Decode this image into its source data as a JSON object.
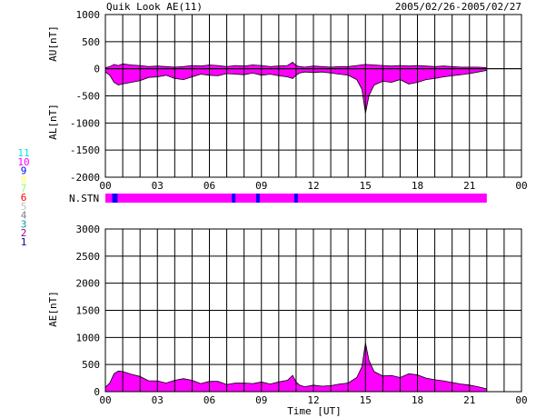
{
  "header": {
    "title": "Quik Look AE(11)",
    "date_range": "2005/02/26-2005/02/27"
  },
  "station_legend": [
    {
      "num": "11",
      "color": "#00e5e5"
    },
    {
      "num": "10",
      "color": "#ff00ff"
    },
    {
      "num": "9",
      "color": "#0000ff"
    },
    {
      "num": "8",
      "color": "#ffff66"
    },
    {
      "num": "7",
      "color": "#80ff80"
    },
    {
      "num": "6",
      "color": "#ff0000"
    },
    {
      "num": "5",
      "color": "#c0c0c0"
    },
    {
      "num": "4",
      "color": "#808080"
    },
    {
      "num": "3",
      "color": "#00a0a0"
    },
    {
      "num": "2",
      "color": "#a00080"
    },
    {
      "num": "1",
      "color": "#0000a0"
    }
  ],
  "chart_data": [
    {
      "type": "area",
      "panel": "AU/AL",
      "xlabel": "",
      "ylabel_top": "AU[nT]",
      "ylabel_bottom": "AL[nT]",
      "ylim": [
        -2000,
        1000
      ],
      "yticks": [
        "1000",
        "500",
        "0",
        "-500",
        "-1000",
        "-1500",
        "-2000"
      ],
      "xlim": [
        0,
        24
      ],
      "xticks": [
        "00",
        "03",
        "06",
        "09",
        "12",
        "15",
        "18",
        "21",
        "00"
      ],
      "fill_color": "#ff00ff",
      "series": [
        {
          "name": "AU",
          "x": [
            0,
            0.25,
            0.5,
            0.75,
            1,
            1.5,
            2,
            2.5,
            3,
            3.5,
            4,
            4.5,
            5,
            5.5,
            6,
            6.5,
            7,
            7.5,
            8,
            8.5,
            9,
            9.5,
            10,
            10.5,
            10.8,
            11,
            11.2,
            11.5,
            12,
            12.5,
            13,
            13.5,
            14,
            14.5,
            15,
            15.5,
            16,
            16.5,
            17,
            17.5,
            18,
            18.5,
            19,
            19.5,
            20,
            20.5,
            21,
            21.5,
            22
          ],
          "values": [
            20,
            40,
            80,
            60,
            90,
            70,
            60,
            40,
            50,
            40,
            30,
            40,
            60,
            50,
            70,
            60,
            40,
            60,
            50,
            70,
            60,
            40,
            50,
            60,
            120,
            60,
            40,
            30,
            50,
            40,
            30,
            40,
            40,
            60,
            80,
            70,
            60,
            50,
            60,
            50,
            60,
            50,
            40,
            50,
            40,
            30,
            30,
            30,
            20
          ]
        },
        {
          "name": "AL",
          "x": [
            0,
            0.25,
            0.5,
            0.75,
            1,
            1.5,
            2,
            2.5,
            3,
            3.5,
            4,
            4.5,
            5,
            5.5,
            6,
            6.5,
            7,
            7.5,
            8,
            8.5,
            9,
            9.5,
            10,
            10.5,
            10.8,
            11,
            11.2,
            11.5,
            12,
            12.5,
            13,
            13.5,
            14,
            14.5,
            14.8,
            15,
            15.2,
            15.5,
            16,
            16.5,
            17,
            17.5,
            18,
            18.5,
            19,
            19.5,
            20,
            20.5,
            21,
            21.5,
            22
          ],
          "values": [
            -60,
            -120,
            -250,
            -300,
            -280,
            -250,
            -220,
            -160,
            -150,
            -120,
            -180,
            -200,
            -150,
            -100,
            -120,
            -130,
            -90,
            -100,
            -110,
            -80,
            -120,
            -100,
            -130,
            -150,
            -180,
            -120,
            -80,
            -60,
            -70,
            -60,
            -80,
            -100,
            -120,
            -200,
            -380,
            -820,
            -500,
            -300,
            -230,
            -250,
            -200,
            -280,
            -250,
            -200,
            -180,
            -150,
            -130,
            -110,
            -90,
            -60,
            -30
          ]
        }
      ]
    },
    {
      "type": "line",
      "panel": "station count",
      "label": "N.STN",
      "xlim": [
        0,
        22
      ],
      "base_color": "#ff00ff",
      "segments": [
        {
          "x": [
            0.4,
            0.7
          ],
          "value": "9",
          "color": "#0000ff"
        },
        {
          "x": [
            7.3,
            7.5
          ],
          "value": "9",
          "color": "#0000ff"
        },
        {
          "x": [
            8.7,
            8.9
          ],
          "value": "9",
          "color": "#0000ff"
        },
        {
          "x": [
            10.9,
            11.1
          ],
          "value": "9",
          "color": "#0000ff"
        }
      ]
    },
    {
      "type": "area",
      "panel": "AE",
      "ylabel": "AE[nT]",
      "xlabel": "Time [UT]",
      "ylim": [
        0,
        3000
      ],
      "yticks": [
        "3000",
        "2500",
        "2000",
        "1500",
        "1000",
        "500",
        "0"
      ],
      "xlim": [
        0,
        24
      ],
      "xticks": [
        "00",
        "03",
        "06",
        "09",
        "12",
        "15",
        "18",
        "21",
        "00"
      ],
      "fill_color": "#ff00ff",
      "series": [
        {
          "name": "AE",
          "x": [
            0,
            0.25,
            0.5,
            0.75,
            1,
            1.5,
            2,
            2.5,
            3,
            3.5,
            4,
            4.5,
            5,
            5.5,
            6,
            6.5,
            7,
            7.5,
            8,
            8.5,
            9,
            9.5,
            10,
            10.5,
            10.8,
            11,
            11.2,
            11.5,
            12,
            12.5,
            13,
            13.5,
            14,
            14.5,
            14.8,
            15,
            15.2,
            15.5,
            16,
            16.5,
            17,
            17.5,
            18,
            18.5,
            19,
            19.5,
            20,
            20.5,
            21,
            21.5,
            22
          ],
          "values": [
            80,
            160,
            330,
            380,
            370,
            320,
            280,
            200,
            200,
            160,
            210,
            240,
            210,
            150,
            190,
            190,
            130,
            160,
            160,
            150,
            180,
            140,
            180,
            210,
            300,
            180,
            120,
            90,
            120,
            100,
            110,
            140,
            160,
            260,
            460,
            900,
            580,
            370,
            290,
            300,
            260,
            330,
            310,
            250,
            220,
            200,
            170,
            140,
            120,
            90,
            50
          ]
        }
      ]
    }
  ]
}
